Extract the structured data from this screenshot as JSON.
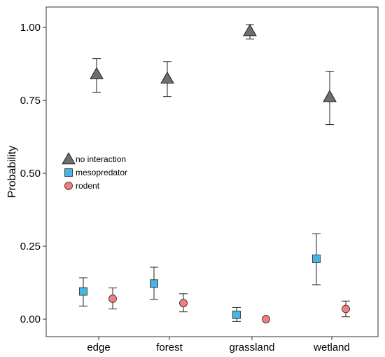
{
  "chart_data": {
    "type": "scatter",
    "categories": [
      "edge",
      "forest",
      "grassland",
      "wetland"
    ],
    "ylabel": "Probability",
    "xlabel": "",
    "ylim": [
      -0.06,
      1.07
    ],
    "yticks": [
      0.0,
      0.25,
      0.5,
      0.75,
      1.0
    ],
    "ytick_labels": [
      "0.00",
      "0.25",
      "0.50",
      "0.75",
      "1.00"
    ],
    "grid": false,
    "legend_position": "center-left",
    "series": [
      {
        "name": "no interaction",
        "marker": "triangle",
        "color": "#6e6e6e",
        "values": [
          0.84,
          0.825,
          0.988,
          0.762
        ],
        "lower": [
          0.778,
          0.763,
          0.96,
          0.667
        ],
        "upper": [
          0.893,
          0.883,
          1.01,
          0.85
        ]
      },
      {
        "name": "mesopredator",
        "marker": "square",
        "color": "#48b4e4",
        "values": [
          0.095,
          0.122,
          0.015,
          0.207
        ],
        "lower": [
          0.045,
          0.068,
          -0.008,
          0.118
        ],
        "upper": [
          0.142,
          0.178,
          0.04,
          0.293
        ]
      },
      {
        "name": "rodent",
        "marker": "circle",
        "color": "#f08080",
        "values": [
          0.07,
          0.055,
          0.0,
          0.035
        ],
        "lower": [
          0.035,
          0.025,
          0.0,
          0.008
        ],
        "upper": [
          0.107,
          0.087,
          0.0,
          0.062
        ]
      }
    ]
  }
}
